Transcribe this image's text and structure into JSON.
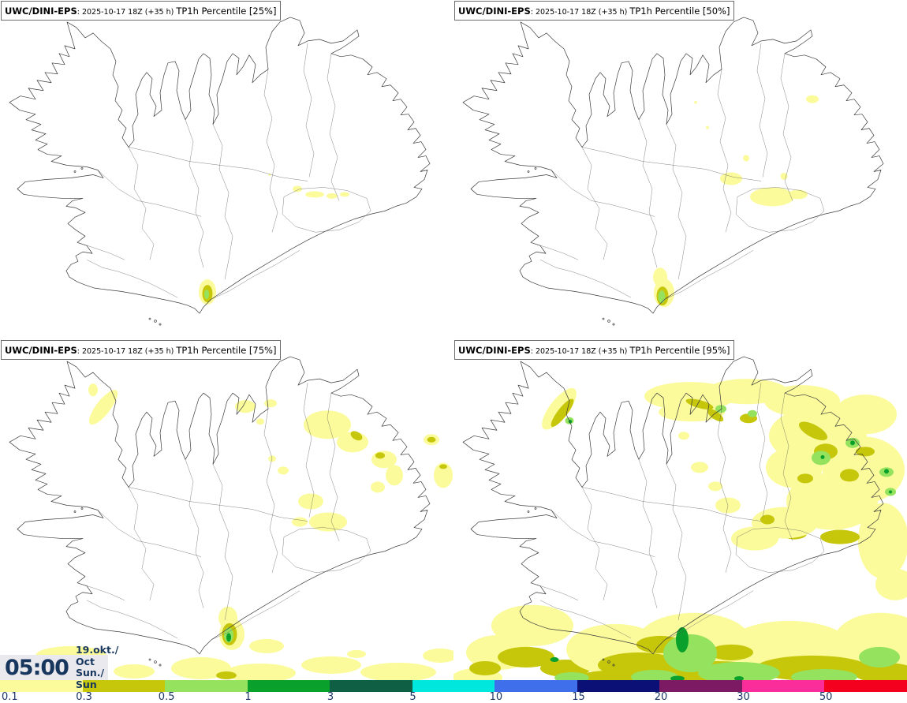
{
  "panels": [
    {
      "model": "UWC/DINI-EPS",
      "run": ": 2025-10-17 18Z (+35 h)",
      "label": "TP1h Percentile [25%]"
    },
    {
      "model": "UWC/DINI-EPS",
      "run": ": 2025-10-17 18Z (+35 h)",
      "label": "TP1h Percentile [50%]"
    },
    {
      "model": "UWC/DINI-EPS",
      "run": ": 2025-10-17 18Z (+35 h)",
      "label": "TP1h Percentile [75%]"
    },
    {
      "model": "UWC/DINI-EPS",
      "run": ": 2025-10-17 18Z (+35 h)",
      "label": "TP1h Percentile [95%]"
    }
  ],
  "time_box": {
    "time": "05:00",
    "date_line1": "19.okt./ Oct",
    "date_line2": "Sun./ Sun"
  },
  "colorbar": {
    "labels": [
      "0.1",
      "0.3",
      "0.5",
      "1",
      "3",
      "5",
      "10",
      "15",
      "20",
      "30",
      "50"
    ],
    "colors": [
      "#FBFB9C",
      "#C6C60A",
      "#95E25F",
      "#0AA02C",
      "#0F5F45",
      "#00E8DE",
      "#3F6FEA",
      "#0B1076",
      "#7C1B64",
      "#FB2D9B",
      "#F4001E"
    ],
    "text_color": "#1C3667"
  }
}
